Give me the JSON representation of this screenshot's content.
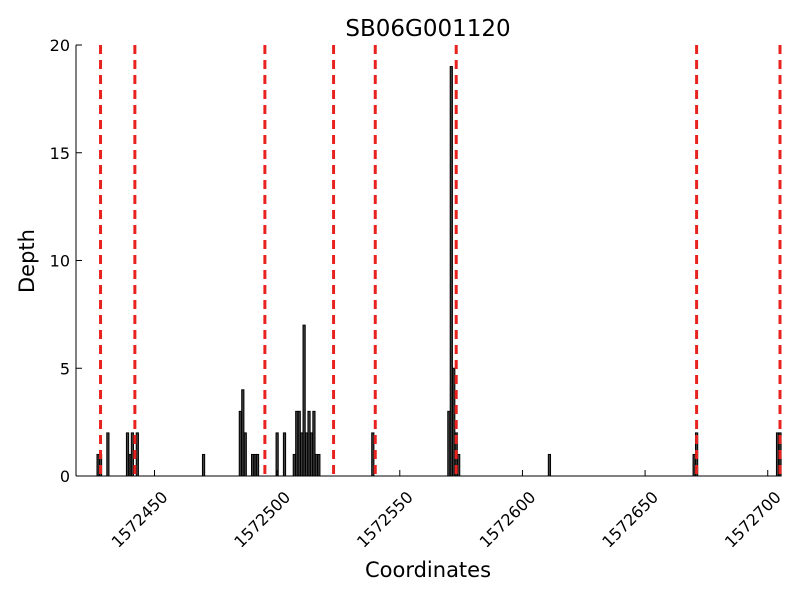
{
  "chart_data": {
    "type": "bar",
    "title": "SB06G001120",
    "xlabel": "Coordinates",
    "ylabel": "Depth",
    "xlim": [
      1572418,
      1572705
    ],
    "ylim": [
      0,
      20
    ],
    "grid": false,
    "x_ticks": [
      1572450,
      1572500,
      1572550,
      1572600,
      1572650,
      1572700
    ],
    "x_tick_labels": [
      "1572450",
      "1572500",
      "1572550",
      "1572600",
      "1572650",
      "1572700"
    ],
    "y_ticks": [
      0,
      5,
      10,
      15,
      20
    ],
    "y_tick_labels": [
      "0",
      "5",
      "10",
      "15",
      "20"
    ],
    "x": [
      1572427,
      1572428,
      1572431,
      1572439,
      1572440,
      1572441,
      1572443,
      1572470,
      1572485,
      1572486,
      1572487,
      1572490,
      1572491,
      1572492,
      1572500,
      1572503,
      1572507,
      1572508,
      1572509,
      1572510,
      1572511,
      1572512,
      1572513,
      1572514,
      1572515,
      1572516,
      1572517,
      1572539,
      1572570,
      1572571,
      1572572,
      1572573,
      1572574,
      1572611,
      1572670,
      1572671,
      1572704,
      1572705
    ],
    "values": [
      1,
      1,
      2,
      2,
      1,
      2,
      2,
      1,
      3,
      4,
      2,
      1,
      1,
      1,
      2,
      2,
      1,
      3,
      3,
      2,
      7,
      2,
      3,
      2,
      3,
      1,
      1,
      2,
      3,
      19,
      5,
      2,
      1,
      1,
      1,
      2,
      2,
      2
    ],
    "reference_lines": {
      "color": "#e8231f",
      "style": "dashed",
      "x": [
        1572428,
        1572442,
        1572495,
        1572523,
        1572540,
        1572573,
        1572671,
        1572705
      ]
    },
    "bar_color": "#404040"
  }
}
